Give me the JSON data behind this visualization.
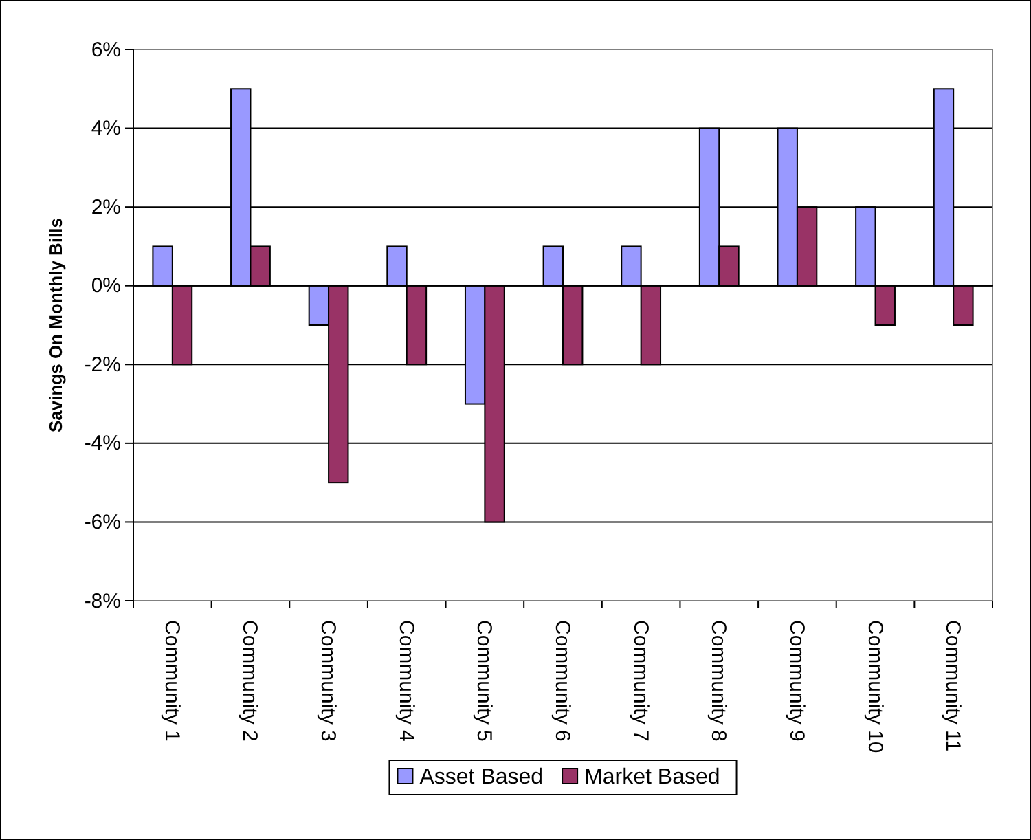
{
  "chart_data": {
    "type": "bar",
    "ylabel": "Savings On Monthly Bills",
    "categories": [
      "Community 1",
      "Community 2",
      "Community 3",
      "Community 4",
      "Community 5",
      "Community 6",
      "Community 7",
      "Community 8",
      "Community 9",
      "Community 10",
      "Community 11"
    ],
    "series": [
      {
        "name": "Asset Based",
        "color": "#9999ff",
        "values": [
          1,
          5,
          -1,
          1,
          -3,
          1,
          1,
          4,
          4,
          2,
          5
        ]
      },
      {
        "name": "Market Based",
        "color": "#993366",
        "values": [
          -2,
          1,
          -5,
          -2,
          -6,
          -2,
          -2,
          1,
          2,
          -1,
          -1
        ]
      }
    ],
    "ylim": [
      -8,
      6
    ],
    "yticks": [
      {
        "value": -8,
        "label": "-8%"
      },
      {
        "value": -6,
        "label": "-6%"
      },
      {
        "value": -4,
        "label": "-4%"
      },
      {
        "value": -2,
        "label": "-2%"
      },
      {
        "value": 0,
        "label": "0%"
      },
      {
        "value": 2,
        "label": "2%"
      },
      {
        "value": 4,
        "label": "4%"
      },
      {
        "value": 6,
        "label": "6%"
      }
    ],
    "grid": "y",
    "legend": "bottom"
  }
}
